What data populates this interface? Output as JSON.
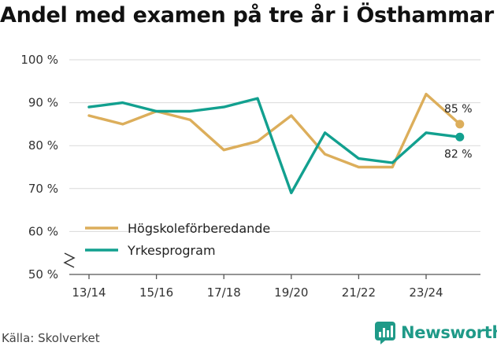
{
  "title": "Andel med examen på tre år i Östhammar",
  "source": "Källa: Skolverket",
  "brand": {
    "name": "Newsworthy",
    "icon": "newsworthy-logo-icon",
    "color": "#1f9a88"
  },
  "chart_data": {
    "type": "line",
    "title": "Andel med examen på tre år i Östhammar",
    "x": [
      "13/14",
      "14/15",
      "15/16",
      "16/17",
      "17/18",
      "18/19",
      "19/20",
      "20/21",
      "21/22",
      "22/23",
      "23/24",
      "24/25"
    ],
    "x_tick_labels": [
      "13/14",
      "15/16",
      "17/18",
      "19/20",
      "21/22",
      "23/24"
    ],
    "y_tick_labels": [
      "50 %",
      "60 %",
      "70 %",
      "80 %",
      "90 %",
      "100 %"
    ],
    "ylim": [
      50,
      100
    ],
    "y_axis_break": true,
    "grid": "horizontal",
    "legend_position": "lower-left",
    "series": [
      {
        "name": "Högskoleförberedande",
        "color": "#dcae5b",
        "values": [
          87,
          85,
          88,
          86,
          79,
          81,
          87,
          78,
          75,
          75,
          92,
          85
        ],
        "end_label": "85 %"
      },
      {
        "name": "Yrkesprogram",
        "color": "#12a08f",
        "values": [
          89,
          90,
          88,
          88,
          89,
          91,
          69,
          83,
          77,
          76,
          83,
          82
        ],
        "end_label": "82 %"
      }
    ]
  }
}
